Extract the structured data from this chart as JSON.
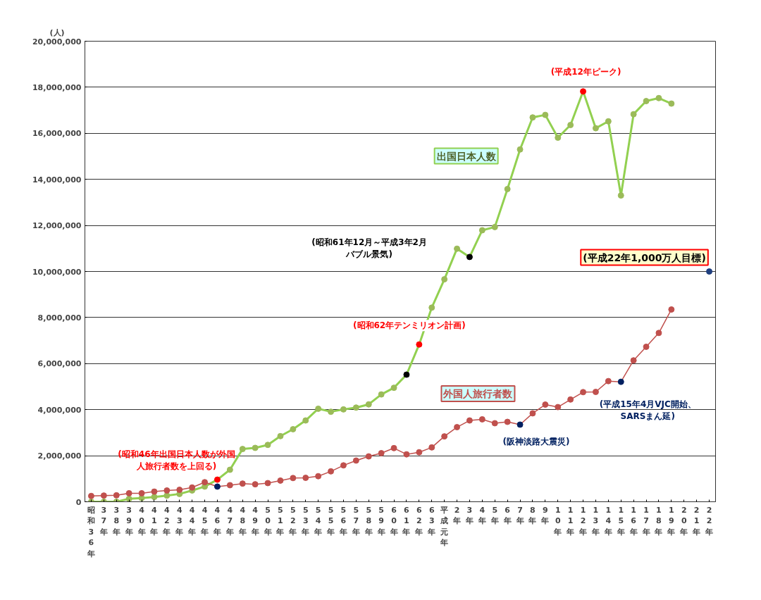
{
  "chart_data": {
    "type": "line",
    "ylabel": "(人)",
    "grid": "y",
    "marker": "circle",
    "line_style": "solid",
    "categories": [
      "昭和36年",
      "37年",
      "38年",
      "39年",
      "40年",
      "41年",
      "42年",
      "43年",
      "44年",
      "45年",
      "46年",
      "47年",
      "48年",
      "49年",
      "50年",
      "51年",
      "52年",
      "53年",
      "54年",
      "55年",
      "56年",
      "57年",
      "58年",
      "59年",
      "60年",
      "61年",
      "62年",
      "63年",
      "平成元年",
      "2年",
      "3年",
      "4年",
      "5年",
      "6年",
      "7年",
      "8年",
      "9年",
      "10年",
      "11年",
      "12年",
      "13年",
      "14年",
      "15年",
      "16年",
      "17年",
      "18年",
      "19年",
      "20年",
      "21年",
      "22年"
    ],
    "ylim": [
      0,
      20000000
    ],
    "yticks": [
      0,
      {
        "value": 2000000,
        "label": "2,000,000"
      },
      {
        "value": 4000000,
        "label": "4,000,000"
      },
      {
        "value": 6000000,
        "label": "6,000,000"
      },
      {
        "value": 8000000,
        "label": "8,000,000"
      },
      {
        "value": 10000000,
        "label": "10,000,000"
      },
      {
        "value": 12000000,
        "label": "12,000,000"
      },
      {
        "value": 14000000,
        "label": "14,000,000"
      },
      {
        "value": 16000000,
        "label": "16,000,000"
      },
      {
        "value": 18000000,
        "label": "18,000,000"
      },
      {
        "value": 20000000,
        "label": "20,000,000"
      }
    ],
    "series": [
      {
        "name": "出国日本人数",
        "color": "#92d050",
        "values": [
          0,
          0,
          0,
          130000,
          160000,
          210000,
          270000,
          340000,
          490000,
          660000,
          960000,
          1390000,
          2290000,
          2340000,
          2470000,
          2850000,
          3150000,
          3530000,
          4040000,
          3910000,
          4010000,
          4090000,
          4230000,
          4660000,
          4950000,
          5520000,
          6830000,
          8430000,
          9660000,
          10990000,
          10630000,
          11790000,
          11930000,
          13580000,
          15300000,
          16690000,
          16800000,
          15810000,
          16360000,
          17820000,
          16220000,
          16520000,
          13300000,
          16830000,
          17400000,
          17530000,
          17290000,
          null,
          null,
          null
        ],
        "colors": [
          "#9bbb59",
          "#9bbb59",
          "#9bbb59",
          "#9bbb59",
          "#9bbb59",
          "#9bbb59",
          "#9bbb59",
          "#9bbb59",
          "#9bbb59",
          "#9bbb59",
          "#ff0000",
          "#9bbb59",
          "#9bbb59",
          "#9bbb59",
          "#9bbb59",
          "#9bbb59",
          "#9bbb59",
          "#9bbb59",
          "#9bbb59",
          "#9bbb59",
          "#9bbb59",
          "#9bbb59",
          "#9bbb59",
          "#9bbb59",
          "#9bbb59",
          "#000000",
          "#ff0000",
          "#9bbb59",
          "#9bbb59",
          "#9bbb59",
          "#000000",
          "#9bbb59",
          "#9bbb59",
          "#9bbb59",
          "#9bbb59",
          "#9bbb59",
          "#9bbb59",
          "#9bbb59",
          "#9bbb59",
          "#ff0000",
          "#9bbb59",
          "#9bbb59",
          "#9bbb59",
          "#9bbb59",
          "#9bbb59",
          "#9bbb59",
          "#9bbb59",
          null,
          null,
          null
        ]
      },
      {
        "name": "外国人旅行者数",
        "color": "#c0504d",
        "values": [
          250000,
          270000,
          280000,
          370000,
          370000,
          440000,
          490000,
          520000,
          620000,
          850000,
          660000,
          720000,
          790000,
          760000,
          810000,
          920000,
          1030000,
          1040000,
          1110000,
          1320000,
          1580000,
          1790000,
          1970000,
          2110000,
          2330000,
          2060000,
          2150000,
          2360000,
          2840000,
          3240000,
          3530000,
          3580000,
          3410000,
          3470000,
          3350000,
          3840000,
          4220000,
          4110000,
          4440000,
          4760000,
          4770000,
          5240000,
          5210000,
          6140000,
          6730000,
          7330000,
          8350000,
          null,
          null,
          null
        ],
        "colors": [
          "#c0504d",
          "#c0504d",
          "#c0504d",
          "#c0504d",
          "#c0504d",
          "#c0504d",
          "#c0504d",
          "#c0504d",
          "#c0504d",
          "#c0504d",
          "#002060",
          "#c0504d",
          "#c0504d",
          "#c0504d",
          "#c0504d",
          "#c0504d",
          "#c0504d",
          "#c0504d",
          "#c0504d",
          "#c0504d",
          "#c0504d",
          "#c0504d",
          "#c0504d",
          "#c0504d",
          "#c0504d",
          "#c0504d",
          "#c0504d",
          "#c0504d",
          "#c0504d",
          "#c0504d",
          "#c0504d",
          "#c0504d",
          "#c0504d",
          "#c0504d",
          "#002060",
          "#c0504d",
          "#c0504d",
          "#c0504d",
          "#c0504d",
          "#c0504d",
          "#c0504d",
          "#c0504d",
          "#002060",
          "#c0504d",
          "#c0504d",
          "#c0504d",
          "#c0504d",
          null,
          null,
          null
        ]
      },
      {
        "type": "scatter",
        "color": "#1f3f7f",
        "values": [
          null,
          null,
          null,
          null,
          null,
          null,
          null,
          null,
          null,
          null,
          null,
          null,
          null,
          null,
          null,
          null,
          null,
          null,
          null,
          null,
          null,
          null,
          null,
          null,
          null,
          null,
          null,
          null,
          null,
          null,
          null,
          null,
          null,
          null,
          null,
          null,
          null,
          null,
          null,
          null,
          null,
          null,
          null,
          null,
          null,
          null,
          null,
          null,
          null,
          10000000
        ]
      }
    ],
    "annotations": [
      {
        "text": "(昭和46年出国日本人数が外国人旅行者数を上回る)",
        "x": "46年",
        "y": 960000
      },
      "(昭和61年12月～平成3年2月バブル景気)",
      {
        "text": "(昭和62年テンミリオン計画)",
        "x": "62年",
        "y": 6830000
      },
      {
        "text": "(平成12年ピーク)",
        "x": "12年",
        "y": 17820000
      },
      {
        "text": "(阪神淡路大震災)",
        "x": "7年",
        "y": 3350000
      },
      {
        "text": "(平成15年4月VJC開始、SARSまん延)",
        "x": "15年",
        "y": 5210000
      },
      {
        "text": "(平成22年1,000万人目標)",
        "x": "22年",
        "y": 10000000
      }
    ]
  }
}
